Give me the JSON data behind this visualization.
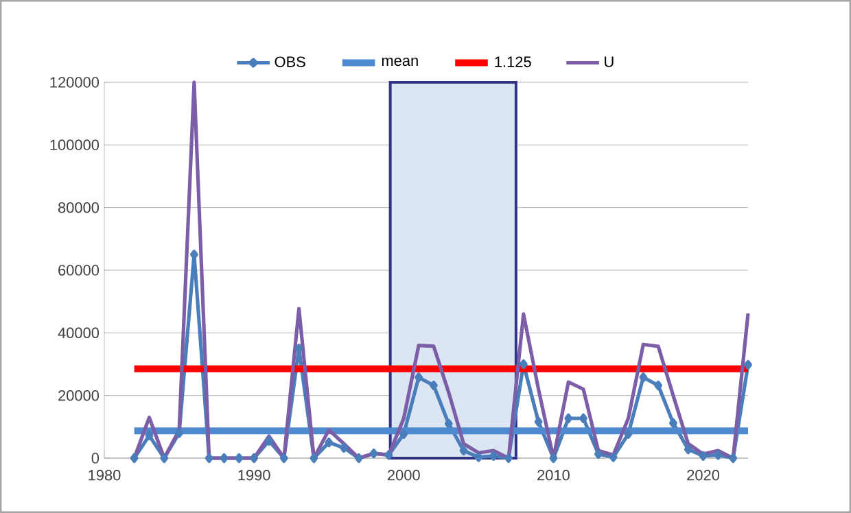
{
  "chart_data": {
    "type": "line",
    "x": [
      1982,
      1983,
      1984,
      1985,
      1986,
      1987,
      1988,
      1989,
      1990,
      1991,
      1992,
      1993,
      1994,
      1995,
      1996,
      1997,
      1998,
      1999,
      2000,
      2001,
      2002,
      2003,
      2004,
      2005,
      2006,
      2007,
      2008,
      2009,
      2010,
      2011,
      2012,
      2013,
      2014,
      2015,
      2016,
      2017,
      2018,
      2019,
      2020,
      2021,
      2022,
      2023
    ],
    "series": [
      {
        "name": "OBS",
        "color": "#4a7ebb",
        "marker": "diamond",
        "values": [
          0,
          7200,
          0,
          8000,
          65000,
          0,
          0,
          0,
          0,
          5500,
          0,
          35000,
          0,
          5000,
          3300,
          0,
          1500,
          1000,
          7700,
          25800,
          23200,
          11000,
          2400,
          300,
          700,
          0,
          30000,
          11600,
          0,
          12700,
          12700,
          1300,
          300,
          7700,
          25800,
          23200,
          11200,
          2800,
          700,
          1000,
          0,
          29800
        ]
      },
      {
        "name": "mean",
        "color": "#4f8ad0",
        "marker": "none",
        "values": [
          8700,
          8700,
          8700,
          8700,
          8700,
          8700,
          8700,
          8700,
          8700,
          8700,
          8700,
          8700,
          8700,
          8700,
          8700,
          8700,
          8700,
          8700,
          8700,
          8700,
          8700,
          8700,
          8700,
          8700,
          8700,
          8700,
          8700,
          8700,
          8700,
          8700,
          8700,
          8700,
          8700,
          8700,
          8700,
          8700,
          8700,
          8700,
          8700,
          8700,
          8700,
          8700
        ]
      },
      {
        "name": "1.125",
        "color": "#ff0000",
        "marker": "none",
        "values": [
          28500,
          28500,
          28500,
          28500,
          28500,
          28500,
          28500,
          28500,
          28500,
          28500,
          28500,
          28500,
          28500,
          28500,
          28500,
          28500,
          28500,
          28500,
          28500,
          28500,
          28500,
          28500,
          28500,
          28500,
          28500,
          28500,
          28500,
          28500,
          28500,
          28500,
          28500,
          28500,
          28500,
          28500,
          28500,
          28500,
          28500,
          28500,
          28500,
          28500,
          28500,
          28500
        ]
      },
      {
        "name": "U",
        "color": "#7b5ea7",
        "marker": "none",
        "values": [
          0,
          13000,
          0,
          9000,
          120000,
          0,
          0,
          0,
          0,
          7000,
          0,
          47700,
          0,
          9000,
          4600,
          0,
          1500,
          1000,
          12700,
          36000,
          35700,
          21000,
          4600,
          1700,
          2400,
          0,
          46000,
          22000,
          0,
          24300,
          22000,
          2400,
          1000,
          12700,
          36300,
          35700,
          20000,
          4600,
          1300,
          2400,
          0,
          46200
        ]
      }
    ],
    "bands": [
      {
        "axis": "x",
        "from": 1999.1,
        "to": 2007.5,
        "color": "#dce6f2"
      }
    ],
    "xlim": [
      1980,
      2023
    ],
    "xticks": [
      1980,
      1990,
      2000,
      2010,
      2020
    ],
    "ylim": [
      0,
      120000
    ],
    "yticks": [
      0,
      20000,
      40000,
      60000,
      80000,
      100000,
      120000
    ],
    "grid": "y",
    "legend": "top",
    "line_style": "solid"
  }
}
